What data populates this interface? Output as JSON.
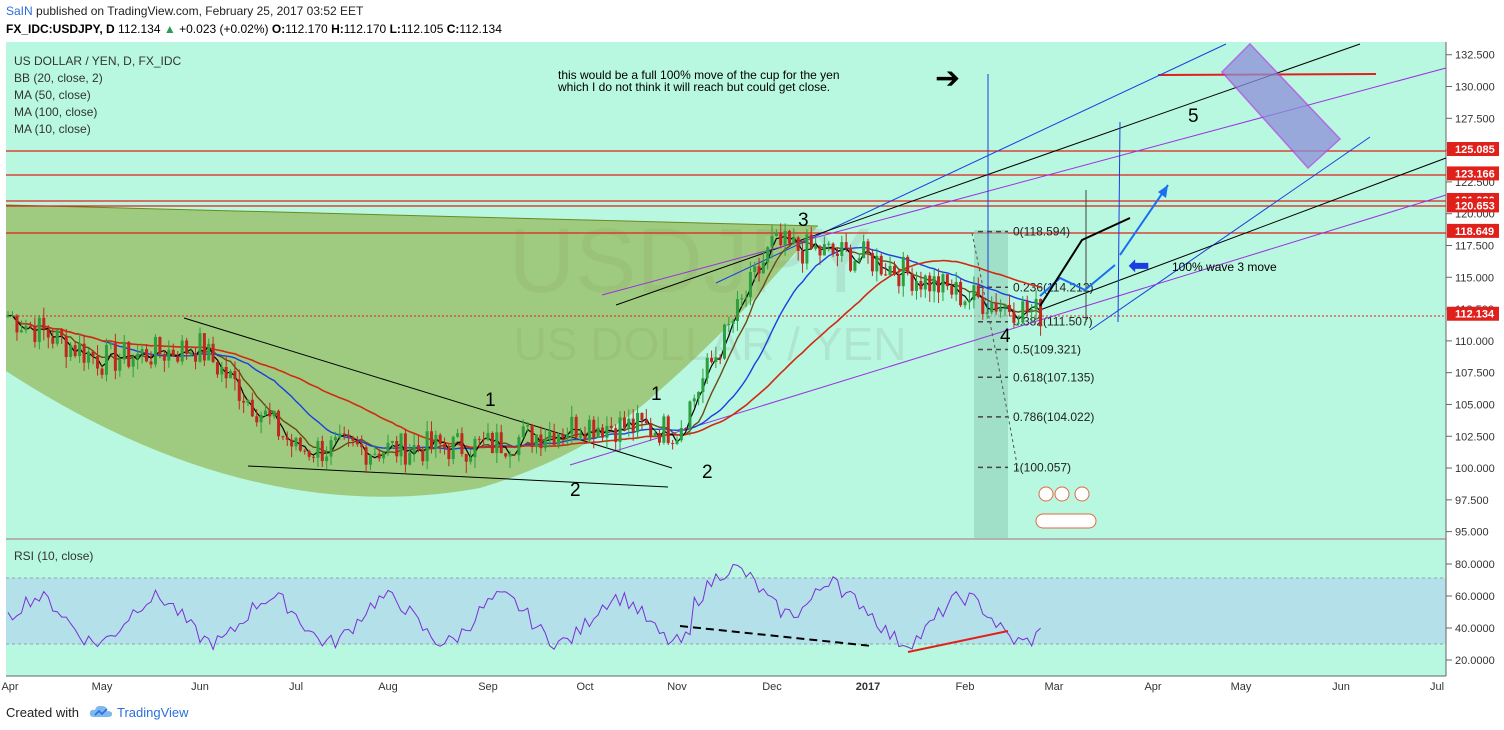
{
  "header": {
    "publisher": "SaIN",
    "published_text": "published on TradingView.com, February 25, 2017 03:52 EET",
    "symbol": "FX_IDC:USDJPY, D",
    "last": "112.134",
    "change": "+0.023 (+0.02%)",
    "open": "112.170",
    "high": "112.170",
    "low": "112.105",
    "close": "112.134",
    "o_label": "O:",
    "h_label": "H:",
    "l_label": "L:",
    "c_label": "C:"
  },
  "legend": {
    "title": "US DOLLAR / YEN, D, FX_IDC",
    "items": [
      "BB (20, close, 2)",
      "MA (50, close)",
      "MA (100, close)",
      "MA (10, close)"
    ]
  },
  "watermark": {
    "big": "USDJPY",
    "small": "US DOLLAR / YEN"
  },
  "annotation": {
    "line1": "this would be a full 100% move of the cup for the yen",
    "line2": "which I do not think it will reach but could get close.",
    "wave3": "100% wave 3 move"
  },
  "price_scale": {
    "ticks": [
      "132.500",
      "130.000",
      "127.500",
      "125.000",
      "122.500",
      "120.000",
      "117.500",
      "115.000",
      "112.500",
      "110.000",
      "107.500",
      "105.000",
      "102.500",
      "100.000",
      "97.500",
      "95.000"
    ],
    "labels": [
      {
        "value": "125.085",
        "color": "#e0201b"
      },
      {
        "value": "123.166",
        "color": "#e0201b"
      },
      {
        "value": "121.080",
        "color": "#e0201b"
      },
      {
        "value": "120.653",
        "color": "#e0201b"
      },
      {
        "value": "118.649",
        "color": "#e0201b"
      },
      {
        "value": "112.134",
        "color": "#e0201b"
      }
    ]
  },
  "time_axis": [
    "Apr",
    "May",
    "Jun",
    "Jul",
    "Aug",
    "Sep",
    "Oct",
    "Nov",
    "Dec",
    "2017",
    "Feb",
    "Mar",
    "Apr",
    "May",
    "Jun",
    "Jul"
  ],
  "fib": [
    {
      "label": "0(118.594)"
    },
    {
      "label": "0.236(114.212)"
    },
    {
      "label": "0.382(111.507)"
    },
    {
      "label": "0.5(109.321)"
    },
    {
      "label": "0.618(107.135)"
    },
    {
      "label": "0.786(104.022)"
    },
    {
      "label": "1(100.057)"
    }
  ],
  "waves": [
    "1",
    "2",
    "1",
    "2",
    "3",
    "4",
    "5"
  ],
  "rsi": {
    "title": "RSI (10, close)",
    "ticks": [
      "80.0000",
      "60.0000",
      "40.0000",
      "20.0000"
    ]
  },
  "footer": {
    "created": "Created with",
    "brand": "TradingView"
  },
  "chart_data": {
    "type": "line",
    "title": "US DOLLAR / YEN, D, FX_IDC",
    "xlabel": "",
    "ylabel": "",
    "x": [
      "Apr",
      "May",
      "Jun",
      "Jul",
      "Aug",
      "Sep",
      "Oct",
      "Nov",
      "Dec",
      "2017",
      "Feb",
      "Mar"
    ],
    "series": [
      {
        "values": [
          112.0,
          108.5,
          109.5,
          101.5,
          101.5,
          101.8,
          103.5,
          103.0,
          117.5,
          116.5,
          113.5,
          112.1
        ]
      }
    ],
    "ylim": [
      94.5,
      133.5
    ],
    "rsi_ylim": [
      10,
      95
    ],
    "grid": false,
    "colors": {
      "background": "#b8f7e0",
      "candle_up": "#2e9e3e",
      "candle_down": "#c0281f",
      "rsi_band": "#b3dceb"
    }
  }
}
